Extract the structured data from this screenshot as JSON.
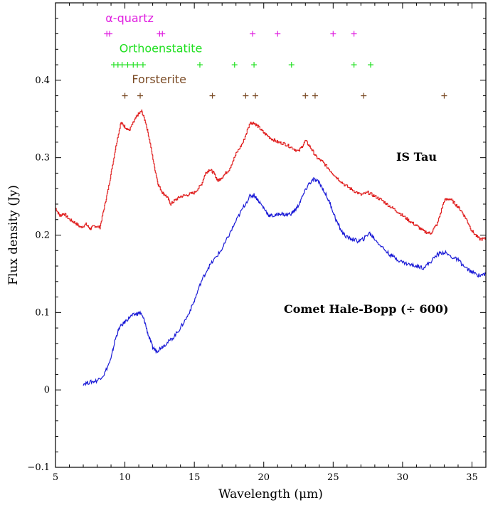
{
  "chart_data": {
    "type": "line",
    "xlabel": "Wavelength (μm)",
    "ylabel": "Flux density (Jy)",
    "xlim": [
      5,
      36
    ],
    "ylim": [
      -0.1,
      0.5
    ],
    "x_ticks": [
      5,
      10,
      15,
      20,
      25,
      30,
      35
    ],
    "y_ticks": [
      -0.1,
      0,
      0.1,
      0.2,
      0.3,
      0.4
    ],
    "series": [
      {
        "name": "IS Tau",
        "label": "IS Tau",
        "color": "#e02020",
        "points": [
          [
            5.0,
            0.235
          ],
          [
            5.3,
            0.225
          ],
          [
            5.6,
            0.228
          ],
          [
            6.0,
            0.22
          ],
          [
            6.4,
            0.216
          ],
          [
            6.8,
            0.21
          ],
          [
            7.2,
            0.214
          ],
          [
            7.5,
            0.208
          ],
          [
            7.8,
            0.212
          ],
          [
            8.2,
            0.21
          ],
          [
            8.5,
            0.235
          ],
          [
            8.8,
            0.26
          ],
          [
            9.1,
            0.29
          ],
          [
            9.4,
            0.32
          ],
          [
            9.7,
            0.345
          ],
          [
            10.0,
            0.34
          ],
          [
            10.3,
            0.335
          ],
          [
            10.6,
            0.345
          ],
          [
            10.9,
            0.355
          ],
          [
            11.2,
            0.36
          ],
          [
            11.5,
            0.345
          ],
          [
            11.8,
            0.32
          ],
          [
            12.1,
            0.29
          ],
          [
            12.4,
            0.265
          ],
          [
            12.7,
            0.255
          ],
          [
            13.0,
            0.25
          ],
          [
            13.3,
            0.24
          ],
          [
            13.6,
            0.245
          ],
          [
            14.0,
            0.25
          ],
          [
            14.5,
            0.252
          ],
          [
            15.0,
            0.255
          ],
          [
            15.5,
            0.265
          ],
          [
            15.8,
            0.28
          ],
          [
            16.1,
            0.285
          ],
          [
            16.4,
            0.28
          ],
          [
            16.7,
            0.27
          ],
          [
            17.0,
            0.275
          ],
          [
            17.5,
            0.285
          ],
          [
            18.0,
            0.305
          ],
          [
            18.5,
            0.32
          ],
          [
            19.0,
            0.345
          ],
          [
            19.3,
            0.345
          ],
          [
            19.6,
            0.34
          ],
          [
            20.0,
            0.332
          ],
          [
            20.5,
            0.325
          ],
          [
            21.0,
            0.32
          ],
          [
            21.5,
            0.318
          ],
          [
            22.0,
            0.313
          ],
          [
            22.5,
            0.308
          ],
          [
            23.0,
            0.322
          ],
          [
            23.4,
            0.312
          ],
          [
            23.8,
            0.3
          ],
          [
            24.2,
            0.295
          ],
          [
            24.7,
            0.285
          ],
          [
            25.2,
            0.275
          ],
          [
            25.8,
            0.265
          ],
          [
            26.4,
            0.258
          ],
          [
            27.0,
            0.252
          ],
          [
            27.5,
            0.255
          ],
          [
            28.0,
            0.25
          ],
          [
            28.5,
            0.245
          ],
          [
            29.0,
            0.238
          ],
          [
            29.5,
            0.232
          ],
          [
            30.0,
            0.225
          ],
          [
            30.5,
            0.218
          ],
          [
            31.0,
            0.212
          ],
          [
            31.5,
            0.205
          ],
          [
            32.0,
            0.202
          ],
          [
            32.5,
            0.215
          ],
          [
            33.0,
            0.245
          ],
          [
            33.4,
            0.247
          ],
          [
            33.8,
            0.24
          ],
          [
            34.2,
            0.232
          ],
          [
            34.6,
            0.22
          ],
          [
            35.0,
            0.205
          ],
          [
            35.5,
            0.195
          ],
          [
            36.0,
            0.195
          ]
        ]
      },
      {
        "name": "Comet Hale-Bopp (÷ 600)",
        "label": "Comet Hale-Bopp (÷ 600)",
        "color": "#1a1ad6",
        "points": [
          [
            7.0,
            0.008
          ],
          [
            7.5,
            0.01
          ],
          [
            8.0,
            0.012
          ],
          [
            8.5,
            0.02
          ],
          [
            9.0,
            0.04
          ],
          [
            9.3,
            0.065
          ],
          [
            9.6,
            0.08
          ],
          [
            10.0,
            0.088
          ],
          [
            10.4,
            0.095
          ],
          [
            10.8,
            0.098
          ],
          [
            11.1,
            0.1
          ],
          [
            11.4,
            0.09
          ],
          [
            11.7,
            0.07
          ],
          [
            12.0,
            0.055
          ],
          [
            12.3,
            0.05
          ],
          [
            12.6,
            0.055
          ],
          [
            13.0,
            0.06
          ],
          [
            13.5,
            0.068
          ],
          [
            14.0,
            0.08
          ],
          [
            14.5,
            0.095
          ],
          [
            15.0,
            0.115
          ],
          [
            15.5,
            0.14
          ],
          [
            16.0,
            0.158
          ],
          [
            16.5,
            0.17
          ],
          [
            17.0,
            0.182
          ],
          [
            17.5,
            0.2
          ],
          [
            18.0,
            0.218
          ],
          [
            18.5,
            0.235
          ],
          [
            19.0,
            0.25
          ],
          [
            19.3,
            0.252
          ],
          [
            19.6,
            0.245
          ],
          [
            20.0,
            0.235
          ],
          [
            20.4,
            0.225
          ],
          [
            20.8,
            0.225
          ],
          [
            21.2,
            0.228
          ],
          [
            21.6,
            0.226
          ],
          [
            22.0,
            0.228
          ],
          [
            22.4,
            0.235
          ],
          [
            22.8,
            0.25
          ],
          [
            23.2,
            0.265
          ],
          [
            23.6,
            0.272
          ],
          [
            24.0,
            0.268
          ],
          [
            24.4,
            0.255
          ],
          [
            24.8,
            0.24
          ],
          [
            25.2,
            0.22
          ],
          [
            25.6,
            0.205
          ],
          [
            26.0,
            0.197
          ],
          [
            26.4,
            0.195
          ],
          [
            26.8,
            0.192
          ],
          [
            27.2,
            0.195
          ],
          [
            27.6,
            0.203
          ],
          [
            28.0,
            0.195
          ],
          [
            28.5,
            0.185
          ],
          [
            29.0,
            0.176
          ],
          [
            29.5,
            0.17
          ],
          [
            30.0,
            0.165
          ],
          [
            30.5,
            0.162
          ],
          [
            31.0,
            0.16
          ],
          [
            31.5,
            0.158
          ],
          [
            32.0,
            0.165
          ],
          [
            32.5,
            0.175
          ],
          [
            33.0,
            0.178
          ],
          [
            33.5,
            0.172
          ],
          [
            34.0,
            0.168
          ],
          [
            34.5,
            0.158
          ],
          [
            35.0,
            0.152
          ],
          [
            35.5,
            0.148
          ],
          [
            36.0,
            0.15
          ]
        ]
      }
    ],
    "mineral_features": [
      {
        "name": "α-quartz",
        "color": "#e020e0",
        "y": 0.46,
        "label_x": 8.6,
        "label_y": 0.475,
        "wavelengths": [
          8.7,
          8.9,
          12.5,
          12.7,
          19.2,
          21.0,
          25.0,
          26.5
        ]
      },
      {
        "name": "Orthoenstatite",
        "color": "#20e020",
        "y": 0.42,
        "label_x": 9.6,
        "label_y": 0.436,
        "wavelengths": [
          9.2,
          9.5,
          9.8,
          10.2,
          10.6,
          10.9,
          11.3,
          15.4,
          17.9,
          19.3,
          22.0,
          26.5,
          27.7
        ]
      },
      {
        "name": "Forsterite",
        "color": "#7a4a24",
        "y": 0.38,
        "label_x": 10.5,
        "label_y": 0.396,
        "wavelengths": [
          10.0,
          11.1,
          16.3,
          18.7,
          19.4,
          23.0,
          23.7,
          27.2,
          33.0
        ]
      }
    ]
  }
}
